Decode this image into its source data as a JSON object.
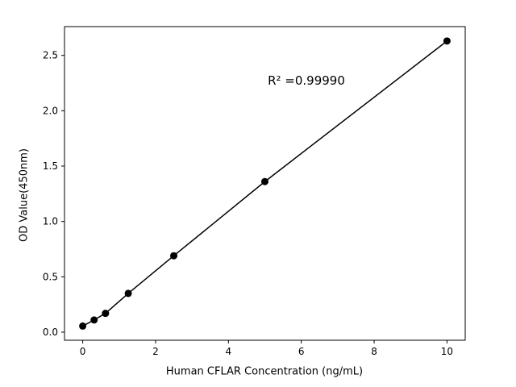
{
  "chart_data": {
    "type": "scatter",
    "title": "",
    "xlabel": "Human CFLAR Concentration (ng/mL)",
    "ylabel": "OD Value(450nm)",
    "x": [
      0,
      0.3125,
      0.625,
      1.25,
      2.5,
      5,
      10
    ],
    "y": [
      0.055,
      0.11,
      0.17,
      0.35,
      0.69,
      1.36,
      2.63
    ],
    "line_through_points": true,
    "marker": "circle",
    "marker_color": "#000000",
    "line_color": "#000000",
    "xlim": [
      -0.5,
      10.5
    ],
    "ylim": [
      -0.073,
      2.76
    ],
    "xticks": [
      0,
      2,
      4,
      6,
      8,
      10
    ],
    "xtick_labels": [
      "0",
      "2",
      "4",
      "6",
      "8",
      "10"
    ],
    "yticks": [
      0.0,
      0.5,
      1.0,
      1.5,
      2.0,
      2.5
    ],
    "ytick_labels": [
      "0.0",
      "0.5",
      "1.0",
      "1.5",
      "2.0",
      "2.5"
    ],
    "grid": false,
    "legend": null,
    "annotation": {
      "text": "R² =0.99990",
      "fx": 0.6,
      "fy": 0.83
    },
    "colors": {
      "background": "#ffffff",
      "axis": "#000000",
      "text": "#000000"
    }
  }
}
